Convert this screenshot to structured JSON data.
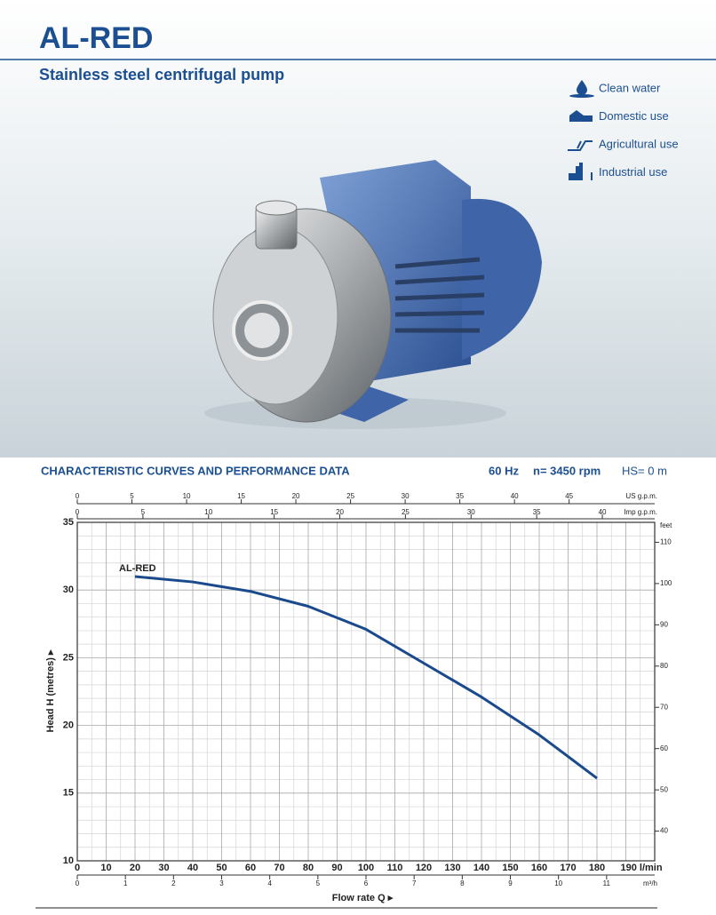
{
  "header": {
    "title": "AL-RED",
    "subtitle": "Stainless steel centrifugal pump"
  },
  "uses": [
    "Clean water",
    "Domestic use",
    "Agricultural use",
    "Industrial use"
  ],
  "chart_data": {
    "type": "line",
    "title": "CHARACTERISTIC CURVES AND PERFORMANCE DATA",
    "conditions": [
      "60 Hz",
      "n= 3450 rpm",
      "HS= 0 m"
    ],
    "x_label": "Flow rate Q ▸",
    "y_label": "Head H (metres) ▸",
    "xlim": [
      0,
      200
    ],
    "xticks": [
      0,
      10,
      20,
      30,
      40,
      50,
      60,
      70,
      80,
      90,
      100,
      110,
      120,
      130,
      140,
      150,
      160,
      170,
      180,
      {
        "value": 190,
        "label": "190 l/min"
      }
    ],
    "ylim": [
      10,
      35
    ],
    "yticks": [
      10,
      15,
      20,
      25,
      30,
      35
    ],
    "minor_xticks": [
      5,
      15,
      25,
      35,
      45,
      55,
      65,
      75,
      85,
      95,
      105,
      115,
      125,
      135,
      145,
      155,
      165,
      175,
      185,
      195,
      200
    ],
    "minor_yticks": [
      11,
      12,
      13,
      14,
      16,
      17,
      18,
      19,
      21,
      22,
      23,
      24,
      26,
      27,
      28,
      29,
      31,
      32,
      33,
      34
    ],
    "grid": true,
    "x": [
      20,
      40,
      60,
      80,
      100,
      120,
      140,
      160,
      180
    ],
    "series": [
      {
        "name": "AL-RED",
        "color": "#1a4a8c",
        "values": [
          31.0,
          30.6,
          29.9,
          28.8,
          27.1,
          24.6,
          22.1,
          19.3,
          16.1
        ]
      }
    ],
    "secondary_axes": [
      {
        "side": "top",
        "unit": "US g.p.m.",
        "lim": [
          0,
          52.83
        ],
        "ticks": [
          0,
          5,
          10,
          15,
          20,
          25,
          30,
          35,
          40,
          45
        ]
      },
      {
        "side": "top",
        "unit": "Imp g.p.m.",
        "lim": [
          0,
          43.99
        ],
        "ticks": [
          0,
          5,
          10,
          15,
          20,
          25,
          30,
          35,
          40
        ]
      },
      {
        "side": "bottom",
        "unit": "m³/h",
        "lim": [
          0,
          12
        ],
        "ticks": [
          0,
          1,
          2,
          3,
          4,
          5,
          6,
          7,
          8,
          9,
          10,
          11
        ]
      },
      {
        "side": "right",
        "unit": "feet",
        "lim": [
          32.81,
          114.83
        ],
        "ticks": [
          40,
          50,
          60,
          70,
          80,
          90,
          100,
          110
        ]
      }
    ]
  }
}
